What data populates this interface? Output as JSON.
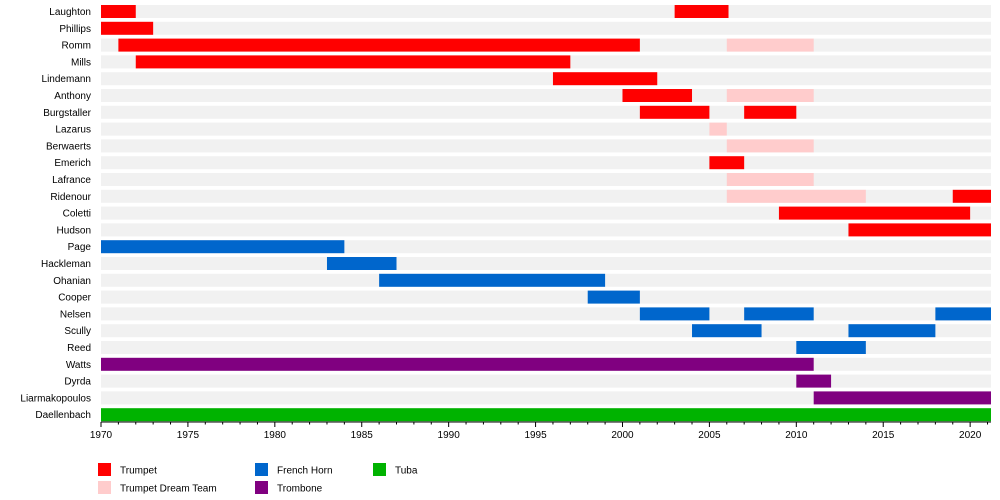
{
  "chart_data": {
    "type": "bar",
    "subtype": "timeline",
    "title": "",
    "xlabel": "",
    "ylabel": "",
    "xlim": [
      1970,
      2021.2
    ],
    "x_ticks": [
      1970,
      1975,
      1980,
      1985,
      1990,
      1995,
      2000,
      2005,
      2010,
      2015,
      2020
    ],
    "x_grid": false,
    "legend_position": "bottom-left",
    "colors": {
      "Trumpet": "#ff0000",
      "Trumpet Dream Team": "#ffcccc",
      "French Horn": "#0066cc",
      "Trombone": "#800080",
      "Tuba": "#00b300",
      "row_background": "#f1f1f1"
    },
    "legend": [
      {
        "label": "Trumpet",
        "group": "Trumpet"
      },
      {
        "label": "Trumpet Dream Team",
        "group": "Trumpet Dream Team"
      },
      {
        "label": "French Horn",
        "group": "French Horn"
      },
      {
        "label": "Trombone",
        "group": "Trombone"
      },
      {
        "label": "Tuba",
        "group": "Tuba"
      }
    ],
    "rows": [
      {
        "name": "Laughton",
        "bars": [
          {
            "group": "Trumpet",
            "start": 1970,
            "end": 1972
          },
          {
            "group": "Trumpet",
            "start": 2003,
            "end": 2006.1
          }
        ]
      },
      {
        "name": "Phillips",
        "bars": [
          {
            "group": "Trumpet",
            "start": 1970,
            "end": 1973
          }
        ]
      },
      {
        "name": "Romm",
        "bars": [
          {
            "group": "Trumpet",
            "start": 1971,
            "end": 2001
          },
          {
            "group": "Trumpet Dream Team",
            "start": 2006,
            "end": 2011
          }
        ]
      },
      {
        "name": "Mills",
        "bars": [
          {
            "group": "Trumpet",
            "start": 1972,
            "end": 1997
          }
        ]
      },
      {
        "name": "Lindemann",
        "bars": [
          {
            "group": "Trumpet",
            "start": 1996,
            "end": 2002
          }
        ]
      },
      {
        "name": "Anthony",
        "bars": [
          {
            "group": "Trumpet",
            "start": 2000,
            "end": 2004
          },
          {
            "group": "Trumpet Dream Team",
            "start": 2006,
            "end": 2011
          }
        ]
      },
      {
        "name": "Burgstaller",
        "bars": [
          {
            "group": "Trumpet",
            "start": 2001,
            "end": 2005
          },
          {
            "group": "Trumpet",
            "start": 2007,
            "end": 2010
          }
        ]
      },
      {
        "name": "Lazarus",
        "bars": [
          {
            "group": "Trumpet Dream Team",
            "start": 2005,
            "end": 2006
          }
        ]
      },
      {
        "name": "Berwaerts",
        "bars": [
          {
            "group": "Trumpet Dream Team",
            "start": 2006,
            "end": 2011
          }
        ]
      },
      {
        "name": "Emerich",
        "bars": [
          {
            "group": "Trumpet",
            "start": 2005,
            "end": 2007
          }
        ]
      },
      {
        "name": "Lafrance",
        "bars": [
          {
            "group": "Trumpet Dream Team",
            "start": 2006,
            "end": 2011
          }
        ]
      },
      {
        "name": "Ridenour",
        "bars": [
          {
            "group": "Trumpet Dream Team",
            "start": 2006,
            "end": 2014
          },
          {
            "group": "Trumpet",
            "start": 2019,
            "end": 2021.2
          }
        ]
      },
      {
        "name": "Coletti",
        "bars": [
          {
            "group": "Trumpet",
            "start": 2009,
            "end": 2020
          }
        ]
      },
      {
        "name": "Hudson",
        "bars": [
          {
            "group": "Trumpet",
            "start": 2013,
            "end": 2021.2
          }
        ]
      },
      {
        "name": "Page",
        "bars": [
          {
            "group": "French Horn",
            "start": 1970,
            "end": 1984
          }
        ]
      },
      {
        "name": "Hackleman",
        "bars": [
          {
            "group": "French Horn",
            "start": 1983,
            "end": 1987
          }
        ]
      },
      {
        "name": "Ohanian",
        "bars": [
          {
            "group": "French Horn",
            "start": 1986,
            "end": 1999
          }
        ]
      },
      {
        "name": "Cooper",
        "bars": [
          {
            "group": "French Horn",
            "start": 1998,
            "end": 2001
          }
        ]
      },
      {
        "name": "Nelsen",
        "bars": [
          {
            "group": "French Horn",
            "start": 2001,
            "end": 2005
          },
          {
            "group": "French Horn",
            "start": 2007,
            "end": 2011
          },
          {
            "group": "French Horn",
            "start": 2018,
            "end": 2021.2
          }
        ]
      },
      {
        "name": "Scully",
        "bars": [
          {
            "group": "French Horn",
            "start": 2004,
            "end": 2008
          },
          {
            "group": "French Horn",
            "start": 2013,
            "end": 2018
          }
        ]
      },
      {
        "name": "Reed",
        "bars": [
          {
            "group": "French Horn",
            "start": 2010,
            "end": 2014
          }
        ]
      },
      {
        "name": "Watts",
        "bars": [
          {
            "group": "Trombone",
            "start": 1970,
            "end": 2011
          }
        ]
      },
      {
        "name": "Dyrda",
        "bars": [
          {
            "group": "Trombone",
            "start": 2010,
            "end": 2012
          }
        ]
      },
      {
        "name": "Liarmakopoulos",
        "bars": [
          {
            "group": "Trombone",
            "start": 2011,
            "end": 2021.2
          }
        ]
      },
      {
        "name": "Daellenbach",
        "bars": [
          {
            "group": "Tuba",
            "start": 1970,
            "end": 2021.2
          }
        ]
      }
    ]
  }
}
